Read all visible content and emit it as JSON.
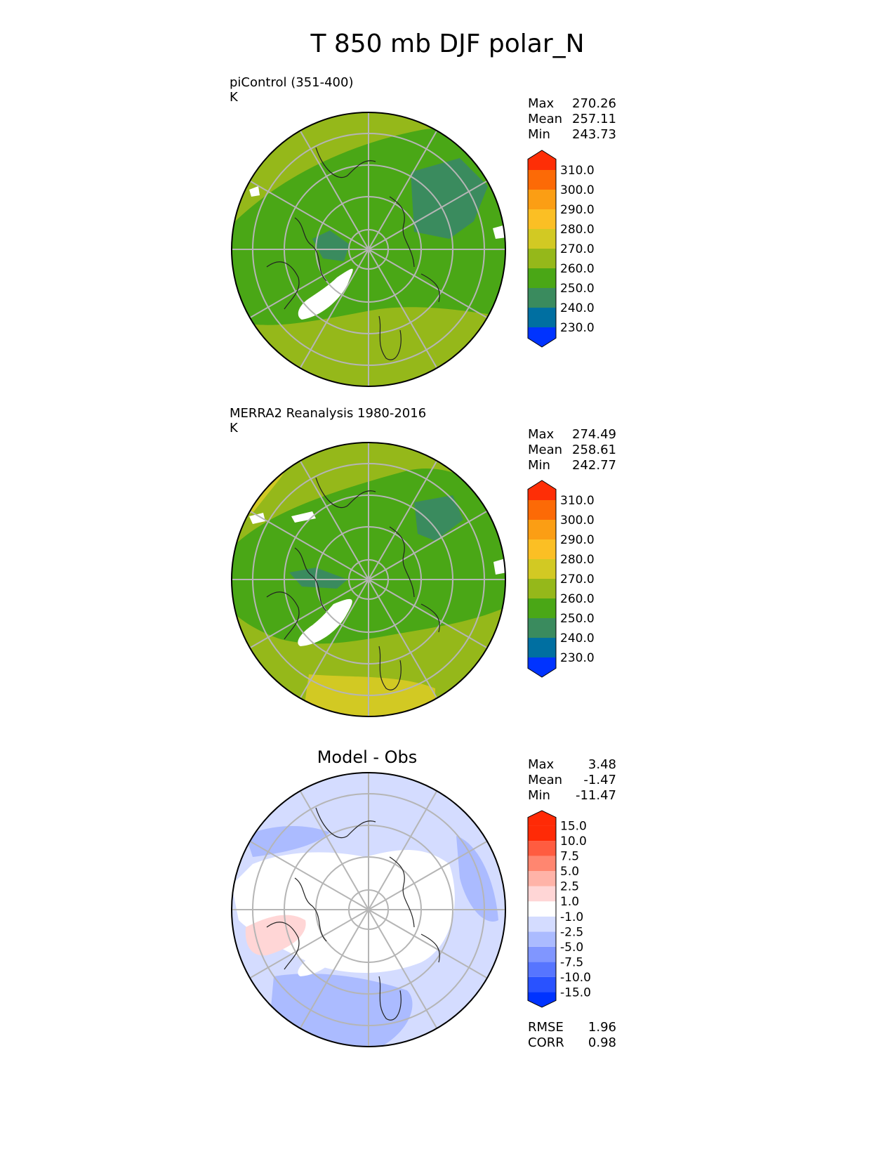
{
  "title": "T 850 mb DJF polar_N",
  "panels": [
    {
      "id": "test",
      "title_line1": "piControl (351-400)",
      "title_line2": "K",
      "stats": [
        {
          "label": "Max",
          "value": "270.26"
        },
        {
          "label": "Mean",
          "value": "257.11"
        },
        {
          "label": "Min",
          "value": "243.73"
        }
      ]
    },
    {
      "id": "ref",
      "title_line1": "MERRA2 Reanalysis 1980-2016",
      "title_line2": "K",
      "stats": [
        {
          "label": "Max",
          "value": "274.49"
        },
        {
          "label": "Mean",
          "value": "258.61"
        },
        {
          "label": "Min",
          "value": "242.77"
        }
      ]
    },
    {
      "id": "diff",
      "title": "Model - Obs",
      "stats": [
        {
          "label": "Max",
          "value": "3.48"
        },
        {
          "label": "Mean",
          "value": "-1.47"
        },
        {
          "label": "Min",
          "value": "-11.47"
        }
      ],
      "metrics": [
        {
          "label": "RMSE",
          "value": "1.96"
        },
        {
          "label": "CORR",
          "value": "0.98"
        }
      ]
    }
  ],
  "colorbars": {
    "temperature": {
      "labels": [
        "310.0",
        "300.0",
        "290.0",
        "280.0",
        "270.0",
        "260.0",
        "250.0",
        "240.0",
        "230.0"
      ],
      "colors": [
        "#0033ff",
        "#006fa1",
        "#3a8b5e",
        "#4aa716",
        "#95b81a",
        "#d2c923",
        "#fbbf24",
        "#fb9e14",
        "#fc6a06",
        "#fe2e06"
      ]
    },
    "difference": {
      "labels": [
        "15.0",
        "10.0",
        "7.5",
        "5.0",
        "2.5",
        "1.0",
        "-1.0",
        "-2.5",
        "-5.0",
        "-7.5",
        "-10.0",
        "-15.0"
      ],
      "colors": [
        "#0033ff",
        "#2952ff",
        "#5775ff",
        "#8096ff",
        "#abbbff",
        "#d4dcff",
        "#ffffff",
        "#ffd6d6",
        "#ffb3a8",
        "#ff8670",
        "#ff5c40",
        "#ff2a06",
        "#ff2a06"
      ]
    }
  },
  "legend": {
    "land": "white",
    "lat_rings_deg": [
      80,
      70,
      60,
      50
    ]
  }
}
